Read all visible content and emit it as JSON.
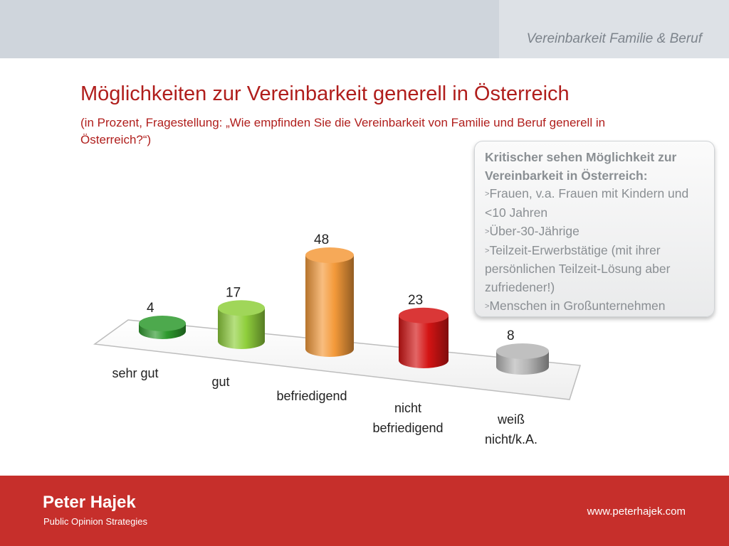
{
  "header": {
    "section_title": "Vereinbarkeit Familie & Beruf"
  },
  "title": "Möglichkeiten zur Vereinbarkeit generell in Österreich",
  "subtitle": "(in Prozent, Fragestellung: „Wie empfinden Sie die Vereinbarkeit von Familie und Beruf generell in Österreich?“)",
  "callout": {
    "heading": "Kritischer sehen Möglichkeit zur Vereinbarkeit in Österreich:",
    "items": [
      "Frauen, v.a. Frauen mit Kindern und <10 Jahren",
      "Über-30-Jährige",
      "Teilzeit-Erwerbstätige (mit ihrer persönlichen Teilzeit-Lösung aber zufriedener!)",
      "Menschen in Großunternehmen"
    ],
    "bullet": ">"
  },
  "chart_data": {
    "type": "bar",
    "categories": [
      "sehr gut",
      "gut",
      "befriedigend",
      "nicht befriedigend",
      "weiß nicht/k.A."
    ],
    "values": [
      4,
      17,
      48,
      23,
      8
    ],
    "colors": [
      "#2e9a2e",
      "#8fcf3c",
      "#f49a3a",
      "#d41414",
      "#b5b5b5"
    ],
    "ylim": [
      0,
      50
    ],
    "grid": false,
    "legend": "none"
  },
  "footer": {
    "brand": "Peter Hajek",
    "tagline": "Public Opinion Strategies",
    "website": "www.peterhajek.com"
  }
}
